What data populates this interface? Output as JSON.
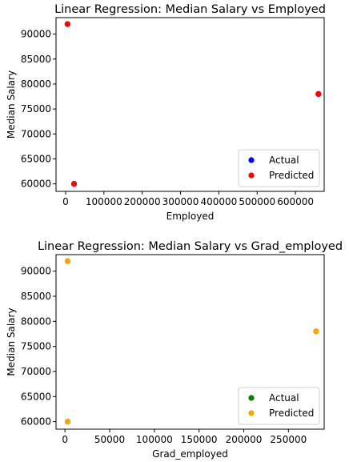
{
  "chart_data": [
    {
      "type": "scatter",
      "title": "Linear Regression: Median Salary vs Employed",
      "xlabel": "Employed",
      "ylabel": "Median Salary",
      "xlim": [
        -25000,
        675000
      ],
      "ylim": [
        58500,
        93300
      ],
      "xticks": [
        0,
        100000,
        200000,
        300000,
        400000,
        500000,
        600000
      ],
      "yticks": [
        60000,
        65000,
        70000,
        75000,
        80000,
        85000,
        90000
      ],
      "grid": false,
      "legend_position": "lower-right",
      "series": [
        {
          "name": "Actual",
          "color": "#0000ff",
          "points": [
            [
              5000,
              92000
            ],
            [
              660000,
              78000
            ],
            [
              22000,
              60000
            ]
          ]
        },
        {
          "name": "Predicted",
          "color": "#ff0000",
          "points": [
            [
              5000,
              92000
            ],
            [
              660000,
              78000
            ],
            [
              22000,
              60000
            ]
          ]
        }
      ]
    },
    {
      "type": "scatter",
      "title": "Linear Regression: Median Salary vs Grad_employed",
      "xlabel": "Grad_employed",
      "ylabel": "Median Salary",
      "xlim": [
        -10000,
        290000
      ],
      "ylim": [
        58500,
        93300
      ],
      "xticks": [
        0,
        50000,
        100000,
        150000,
        200000,
        250000
      ],
      "yticks": [
        60000,
        65000,
        70000,
        75000,
        80000,
        85000,
        90000
      ],
      "grid": false,
      "legend_position": "lower-right",
      "series": [
        {
          "name": "Actual",
          "color": "#008000",
          "points": [
            [
              3000,
              92000
            ],
            [
              281000,
              78000
            ],
            [
              3000,
              60000
            ]
          ]
        },
        {
          "name": "Predicted",
          "color": "#ffa500",
          "points": [
            [
              3000,
              92000
            ],
            [
              281000,
              78000
            ],
            [
              3000,
              60000
            ]
          ]
        }
      ]
    }
  ]
}
